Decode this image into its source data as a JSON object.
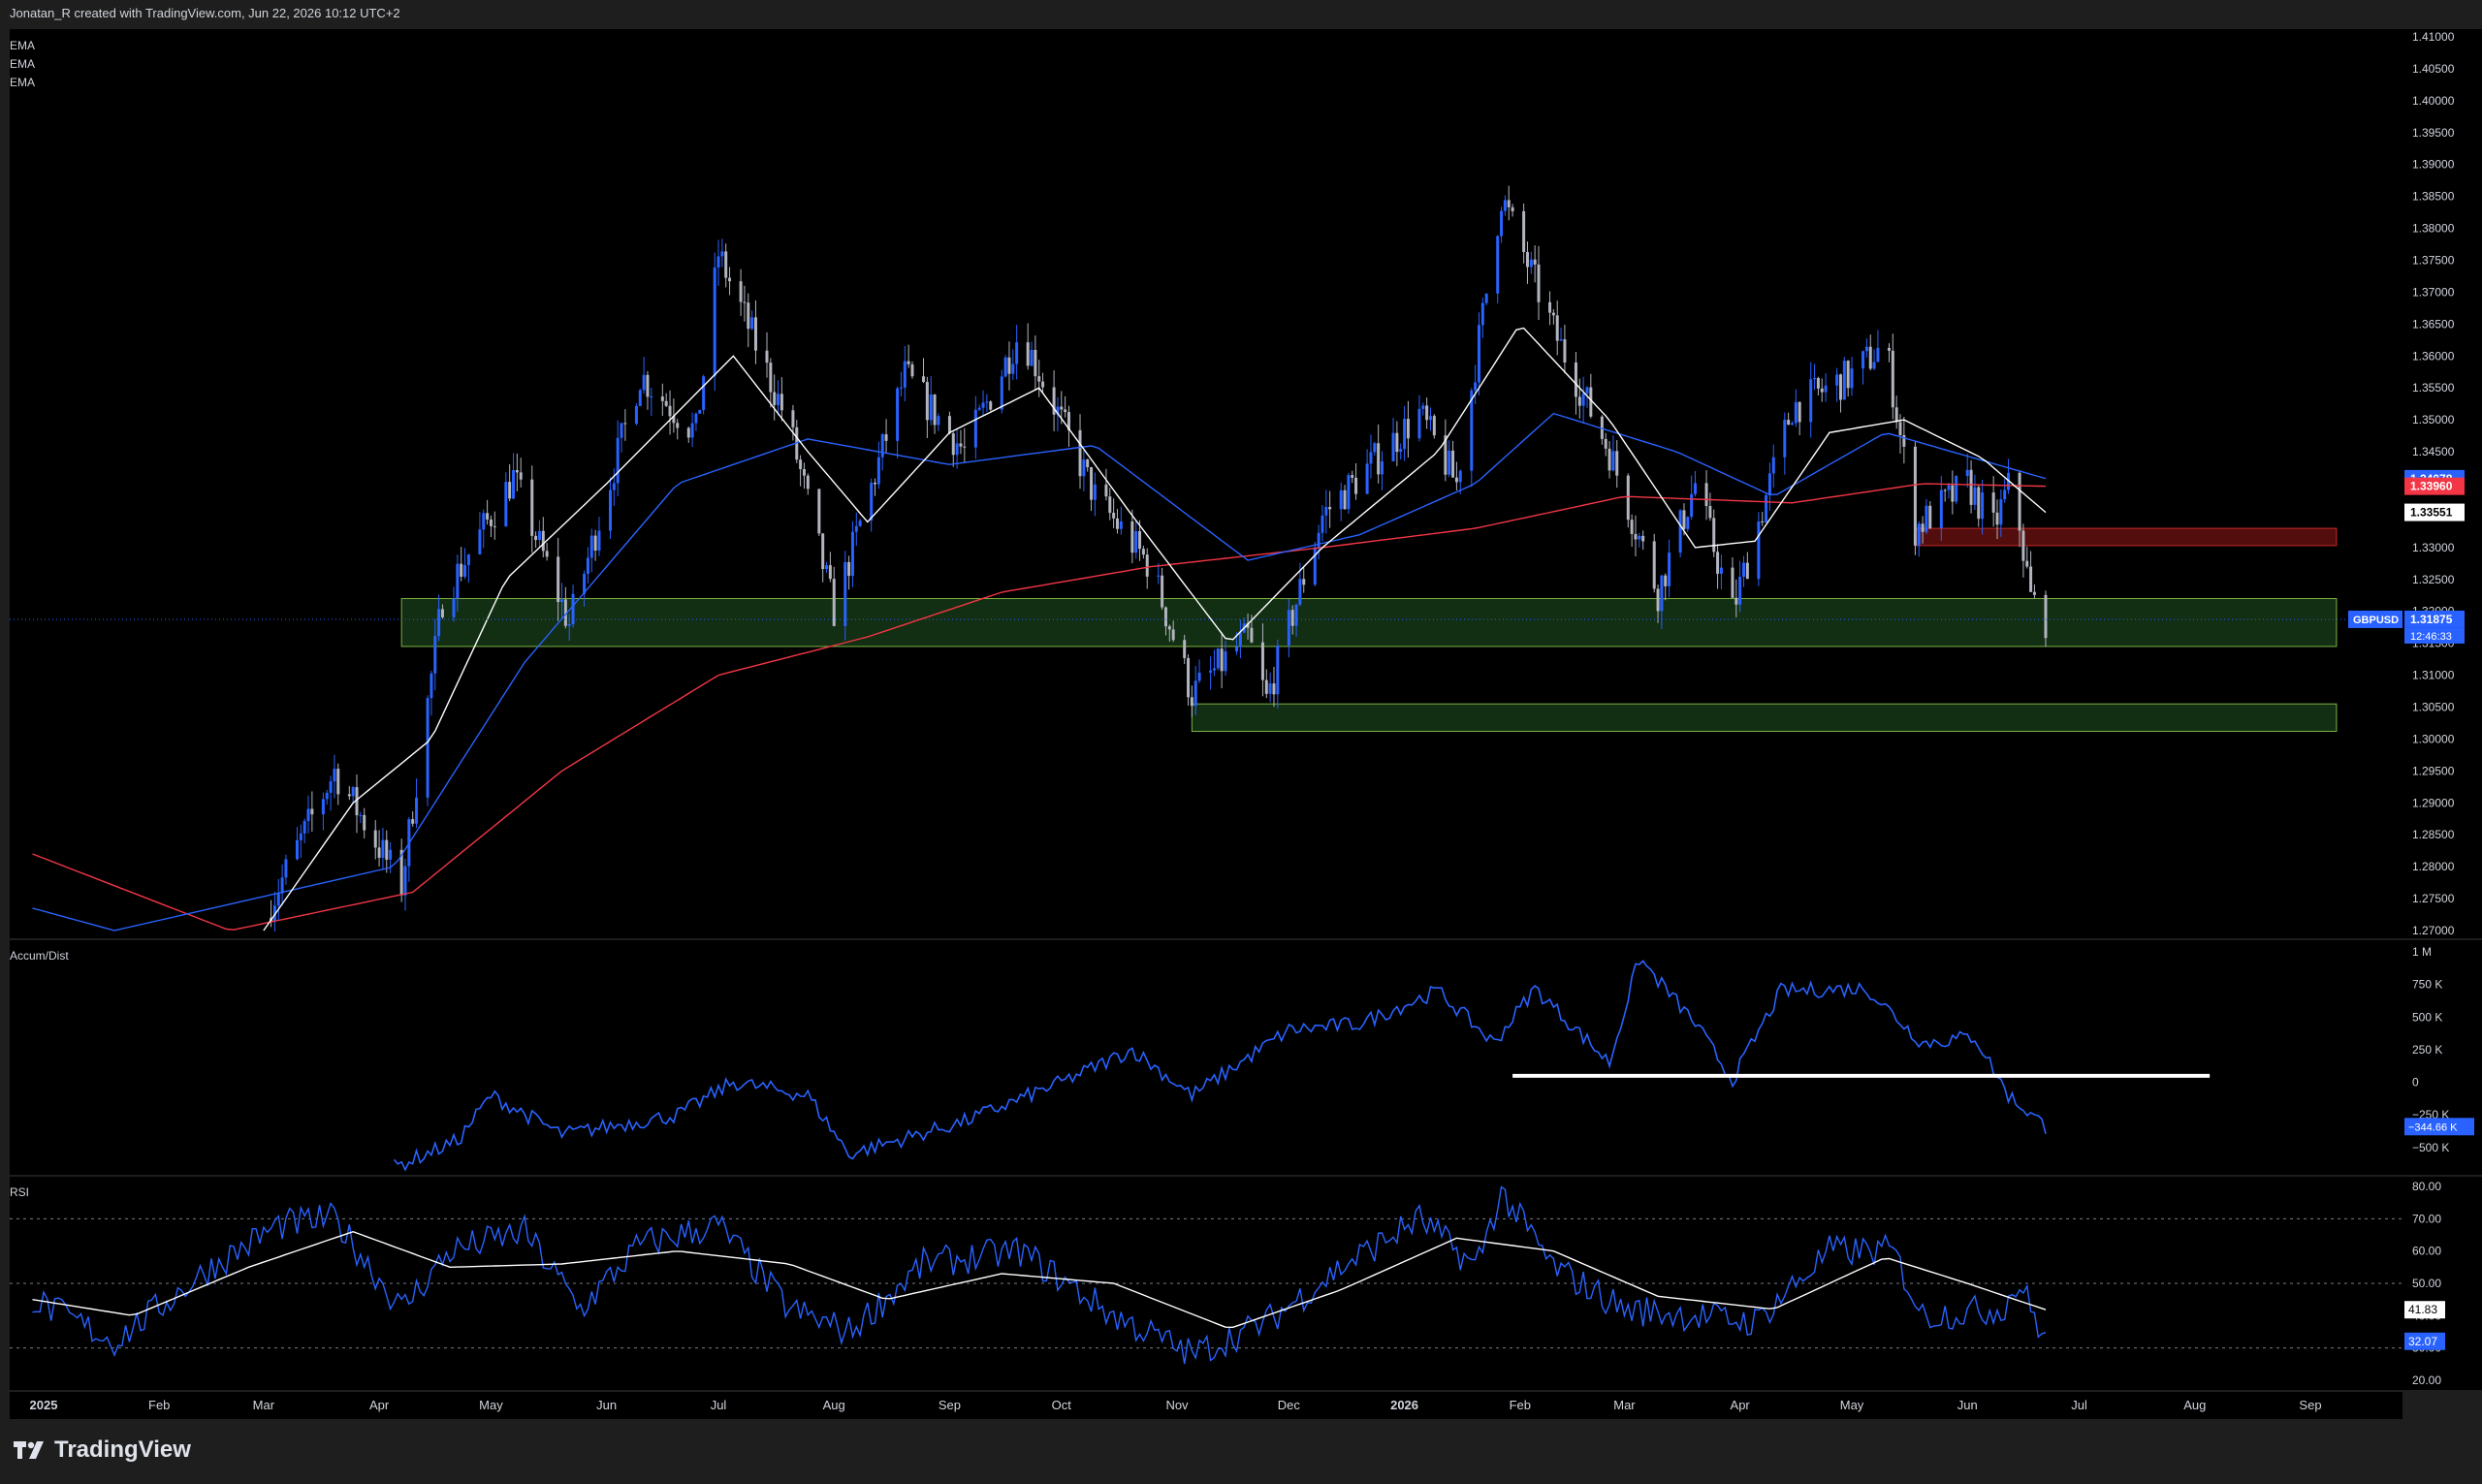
{
  "header": {
    "attribution": "Jonatan_R created with TradingView.com, Jun 22, 2026 10:12 UTC+2"
  },
  "footer": {
    "brand": "TradingView"
  },
  "colors": {
    "bull": "#2962ff",
    "bear": "#b2b5be",
    "ema_fast": "#ffffff",
    "ema_mid": "#2962ff",
    "ema_slow": "#f23645",
    "zone_green": "#2e7d32",
    "zone_red": "#b71c1c",
    "rsi": "#2962ff",
    "rsi_ma": "#ffffff"
  },
  "icons": {
    "logo": "tradingview-logo-icon"
  },
  "chart_data": [
    {
      "type": "candlestick",
      "symbol": "GBPUSD",
      "indicator_labels": [
        "EMA",
        "EMA",
        "EMA"
      ],
      "ylim": [
        1.27,
        1.41
      ],
      "y_ticks": [
        "1.41000",
        "1.40500",
        "1.40000",
        "1.39500",
        "1.39000",
        "1.38500",
        "1.38000",
        "1.37500",
        "1.37000",
        "1.36500",
        "1.36000",
        "1.35500",
        "1.35000",
        "1.34500",
        "1.34000",
        "1.33500",
        "1.33000",
        "1.32500",
        "1.32000",
        "1.31500",
        "1.31000",
        "1.30500",
        "1.30000",
        "1.29500",
        "1.29000",
        "1.28500",
        "1.28000",
        "1.27500",
        "1.27000"
      ],
      "x_ticks": [
        "2025",
        "Feb",
        "Mar",
        "Apr",
        "May",
        "Jun",
        "Jul",
        "Aug",
        "Sep",
        "Oct",
        "Nov",
        "Dec",
        "2026",
        "Feb",
        "Mar",
        "Apr",
        "May",
        "Jun",
        "Jul",
        "Aug",
        "Sep"
      ],
      "price_key_points": [
        {
          "x": "2025-03-01",
          "y": 1.272
        },
        {
          "x": "2025-03-20",
          "y": 1.295
        },
        {
          "x": "2025-04-07",
          "y": 1.277
        },
        {
          "x": "2025-04-18",
          "y": 1.322
        },
        {
          "x": "2025-05-07",
          "y": 1.341
        },
        {
          "x": "2025-05-22",
          "y": 1.318
        },
        {
          "x": "2025-06-10",
          "y": 1.357
        },
        {
          "x": "2025-06-25",
          "y": 1.348
        },
        {
          "x": "2025-07-01",
          "y": 1.376
        },
        {
          "x": "2025-07-20",
          "y": 1.349
        },
        {
          "x": "2025-08-01",
          "y": 1.32
        },
        {
          "x": "2025-08-20",
          "y": 1.357
        },
        {
          "x": "2025-09-05",
          "y": 1.345
        },
        {
          "x": "2025-09-20",
          "y": 1.364
        },
        {
          "x": "2025-10-10",
          "y": 1.338
        },
        {
          "x": "2025-10-25",
          "y": 1.327
        },
        {
          "x": "2025-11-05",
          "y": 1.307
        },
        {
          "x": "2025-11-20",
          "y": 1.316
        },
        {
          "x": "2025-11-25",
          "y": 1.306
        },
        {
          "x": "2025-12-10",
          "y": 1.335
        },
        {
          "x": "2026-01-05",
          "y": 1.351
        },
        {
          "x": "2026-01-15",
          "y": 1.34
        },
        {
          "x": "2026-01-27",
          "y": 1.385
        },
        {
          "x": "2026-02-10",
          "y": 1.364
        },
        {
          "x": "2026-02-25",
          "y": 1.345
        },
        {
          "x": "2026-03-10",
          "y": 1.323
        },
        {
          "x": "2026-03-20",
          "y": 1.34
        },
        {
          "x": "2026-03-30",
          "y": 1.32
        },
        {
          "x": "2026-04-15",
          "y": 1.352
        },
        {
          "x": "2026-05-01",
          "y": 1.357
        },
        {
          "x": "2026-05-10",
          "y": 1.362
        },
        {
          "x": "2026-05-18",
          "y": 1.333
        },
        {
          "x": "2026-06-01",
          "y": 1.34
        },
        {
          "x": "2026-06-08",
          "y": 1.333
        },
        {
          "x": "2026-06-13",
          "y": 1.341
        },
        {
          "x": "2026-06-18",
          "y": 1.322
        },
        {
          "x": "2026-06-22",
          "y": 1.3187
        }
      ],
      "ema_fast_key_points": [
        {
          "x": "2025-03-01",
          "y": 1.27
        },
        {
          "x": "2025-03-25",
          "y": 1.29
        },
        {
          "x": "2025-04-15",
          "y": 1.3
        },
        {
          "x": "2025-05-05",
          "y": 1.325
        },
        {
          "x": "2025-06-01",
          "y": 1.34
        },
        {
          "x": "2025-07-05",
          "y": 1.36
        },
        {
          "x": "2025-07-25",
          "y": 1.345
        },
        {
          "x": "2025-08-10",
          "y": 1.334
        },
        {
          "x": "2025-09-01",
          "y": 1.348
        },
        {
          "x": "2025-09-25",
          "y": 1.355
        },
        {
          "x": "2025-10-20",
          "y": 1.335
        },
        {
          "x": "2025-11-15",
          "y": 1.315
        },
        {
          "x": "2025-12-10",
          "y": 1.33
        },
        {
          "x": "2026-01-10",
          "y": 1.345
        },
        {
          "x": "2026-02-01",
          "y": 1.365
        },
        {
          "x": "2026-02-25",
          "y": 1.35
        },
        {
          "x": "2026-03-20",
          "y": 1.33
        },
        {
          "x": "2026-04-05",
          "y": 1.331
        },
        {
          "x": "2026-04-25",
          "y": 1.348
        },
        {
          "x": "2026-05-15",
          "y": 1.35
        },
        {
          "x": "2026-06-05",
          "y": 1.344
        },
        {
          "x": "2026-06-22",
          "y": 1.3355
        }
      ],
      "ema_mid_key_points": [
        {
          "x": "2024-12-29",
          "y": 1.2735
        },
        {
          "x": "2025-01-20",
          "y": 1.27
        },
        {
          "x": "2025-04-05",
          "y": 1.28
        },
        {
          "x": "2025-05-10",
          "y": 1.312
        },
        {
          "x": "2025-06-20",
          "y": 1.34
        },
        {
          "x": "2025-07-25",
          "y": 1.347
        },
        {
          "x": "2025-09-01",
          "y": 1.343
        },
        {
          "x": "2025-10-10",
          "y": 1.346
        },
        {
          "x": "2025-11-20",
          "y": 1.328
        },
        {
          "x": "2025-12-20",
          "y": 1.332
        },
        {
          "x": "2026-01-20",
          "y": 1.34
        },
        {
          "x": "2026-02-10",
          "y": 1.351
        },
        {
          "x": "2026-03-15",
          "y": 1.345
        },
        {
          "x": "2026-04-10",
          "y": 1.338
        },
        {
          "x": "2026-05-10",
          "y": 1.348
        },
        {
          "x": "2026-06-22",
          "y": 1.3408
        }
      ],
      "ema_slow_key_points": [
        {
          "x": "2024-12-29",
          "y": 1.282
        },
        {
          "x": "2025-02-20",
          "y": 1.27
        },
        {
          "x": "2025-04-10",
          "y": 1.276
        },
        {
          "x": "2025-05-20",
          "y": 1.295
        },
        {
          "x": "2025-07-01",
          "y": 1.31
        },
        {
          "x": "2025-08-10",
          "y": 1.316
        },
        {
          "x": "2025-09-15",
          "y": 1.323
        },
        {
          "x": "2025-10-25",
          "y": 1.327
        },
        {
          "x": "2025-12-10",
          "y": 1.33
        },
        {
          "x": "2026-01-20",
          "y": 1.333
        },
        {
          "x": "2026-03-01",
          "y": 1.338
        },
        {
          "x": "2026-04-15",
          "y": 1.337
        },
        {
          "x": "2026-05-20",
          "y": 1.34
        },
        {
          "x": "2026-06-22",
          "y": 1.3396
        }
      ],
      "zones": [
        {
          "color": "green",
          "x0": "2025-04-07",
          "x1": "2026-09-08",
          "y0": 1.3145,
          "y1": 1.322
        },
        {
          "color": "green",
          "x0": "2025-11-05",
          "x1": "2026-09-08",
          "y0": 1.3012,
          "y1": 1.3055
        },
        {
          "color": "red",
          "x0": "2026-05-18",
          "x1": "2026-09-08",
          "y0": 1.3303,
          "y1": 1.333
        }
      ],
      "price_labels": [
        {
          "value": "1.34078",
          "color": "#2962ff",
          "y": 1.34078
        },
        {
          "value": "1.33960",
          "color": "#f23645",
          "y": 1.3396
        },
        {
          "value": "1.33551",
          "color": "#ffffff",
          "y": 1.33551
        },
        {
          "value": "1.31875",
          "color": "#2962ff",
          "y": 1.31875
        }
      ],
      "countdown": "12:46:33"
    },
    {
      "type": "line",
      "title": "Accum/Dist",
      "ylim": [
        -0.65,
        1.0
      ],
      "y_ticks": [
        "1 M",
        "750 K",
        "500 K",
        "250 K",
        "0",
        "−250 K",
        "−500 K"
      ],
      "current_label": "−344.66 K",
      "key_points": [
        {
          "x": "2025-04-05",
          "y": -0.65
        },
        {
          "x": "2025-04-22",
          "y": -0.45
        },
        {
          "x": "2025-05-01",
          "y": -0.1
        },
        {
          "x": "2025-05-20",
          "y": -0.4
        },
        {
          "x": "2025-06-20",
          "y": -0.25
        },
        {
          "x": "2025-07-05",
          "y": 0.0
        },
        {
          "x": "2025-07-25",
          "y": -0.1
        },
        {
          "x": "2025-08-05",
          "y": -0.55
        },
        {
          "x": "2025-09-05",
          "y": -0.3
        },
        {
          "x": "2025-10-01",
          "y": 0.0
        },
        {
          "x": "2025-10-20",
          "y": 0.25
        },
        {
          "x": "2025-11-05",
          "y": -0.1
        },
        {
          "x": "2025-12-01",
          "y": 0.4
        },
        {
          "x": "2025-12-20",
          "y": 0.45
        },
        {
          "x": "2026-01-10",
          "y": 0.7
        },
        {
          "x": "2026-01-25",
          "y": 0.3
        },
        {
          "x": "2026-02-05",
          "y": 0.72
        },
        {
          "x": "2026-02-25",
          "y": 0.15
        },
        {
          "x": "2026-03-05",
          "y": 0.95
        },
        {
          "x": "2026-03-20",
          "y": 0.45
        },
        {
          "x": "2026-03-30",
          "y": 0.02
        },
        {
          "x": "2026-04-12",
          "y": 0.7
        },
        {
          "x": "2026-05-05",
          "y": 0.72
        },
        {
          "x": "2026-05-20",
          "y": 0.3
        },
        {
          "x": "2026-06-03",
          "y": 0.35
        },
        {
          "x": "2026-06-12",
          "y": -0.1
        },
        {
          "x": "2026-06-22",
          "y": -0.34
        }
      ],
      "support_line": {
        "x0": "2026-01-30",
        "x1": "2026-08-05",
        "y": 0.05
      }
    },
    {
      "type": "line",
      "title": "RSI",
      "ylim": [
        20,
        80
      ],
      "y_ticks": [
        "80.00",
        "70.00",
        "60.00",
        "50.00",
        "40.00",
        "30.00",
        "20.00"
      ],
      "bands": [
        70,
        50,
        30
      ],
      "rsi_label": "32.07",
      "rsi_ma_label": "41.83",
      "rsi_key_points": [
        {
          "x": "2024-12-29",
          "y": 45
        },
        {
          "x": "2025-01-20",
          "y": 32
        },
        {
          "x": "2025-02-15",
          "y": 55
        },
        {
          "x": "2025-03-05",
          "y": 68
        },
        {
          "x": "2025-03-20",
          "y": 70
        },
        {
          "x": "2025-04-07",
          "y": 42
        },
        {
          "x": "2025-04-20",
          "y": 60
        },
        {
          "x": "2025-05-10",
          "y": 66
        },
        {
          "x": "2025-05-25",
          "y": 42
        },
        {
          "x": "2025-06-10",
          "y": 62
        },
        {
          "x": "2025-07-01",
          "y": 68
        },
        {
          "x": "2025-07-20",
          "y": 42
        },
        {
          "x": "2025-08-05",
          "y": 35
        },
        {
          "x": "2025-08-25",
          "y": 56
        },
        {
          "x": "2025-09-20",
          "y": 60
        },
        {
          "x": "2025-10-15",
          "y": 40
        },
        {
          "x": "2025-11-05",
          "y": 28
        },
        {
          "x": "2025-11-25",
          "y": 38
        },
        {
          "x": "2025-12-15",
          "y": 55
        },
        {
          "x": "2026-01-05",
          "y": 70
        },
        {
          "x": "2026-01-20",
          "y": 55
        },
        {
          "x": "2026-01-27",
          "y": 78
        },
        {
          "x": "2026-02-10",
          "y": 55
        },
        {
          "x": "2026-03-01",
          "y": 42
        },
        {
          "x": "2026-03-20",
          "y": 40
        },
        {
          "x": "2026-04-05",
          "y": 38
        },
        {
          "x": "2026-04-25",
          "y": 60
        },
        {
          "x": "2026-05-12",
          "y": 60
        },
        {
          "x": "2026-05-20",
          "y": 40
        },
        {
          "x": "2026-06-10",
          "y": 42
        },
        {
          "x": "2026-06-15",
          "y": 50
        },
        {
          "x": "2026-06-22",
          "y": 32.07
        }
      ],
      "rsi_ma_key_points": [
        {
          "x": "2024-12-29",
          "y": 45
        },
        {
          "x": "2025-01-25",
          "y": 40
        },
        {
          "x": "2025-02-25",
          "y": 55
        },
        {
          "x": "2025-03-25",
          "y": 66
        },
        {
          "x": "2025-04-20",
          "y": 55
        },
        {
          "x": "2025-05-20",
          "y": 56
        },
        {
          "x": "2025-06-20",
          "y": 60
        },
        {
          "x": "2025-07-20",
          "y": 56
        },
        {
          "x": "2025-08-15",
          "y": 45
        },
        {
          "x": "2025-09-15",
          "y": 53
        },
        {
          "x": "2025-10-15",
          "y": 50
        },
        {
          "x": "2025-11-15",
          "y": 36
        },
        {
          "x": "2025-12-15",
          "y": 48
        },
        {
          "x": "2026-01-15",
          "y": 64
        },
        {
          "x": "2026-02-10",
          "y": 60
        },
        {
          "x": "2026-03-10",
          "y": 46
        },
        {
          "x": "2026-04-10",
          "y": 42
        },
        {
          "x": "2026-05-10",
          "y": 58
        },
        {
          "x": "2026-06-01",
          "y": 50
        },
        {
          "x": "2026-06-22",
          "y": 41.83
        }
      ]
    }
  ]
}
